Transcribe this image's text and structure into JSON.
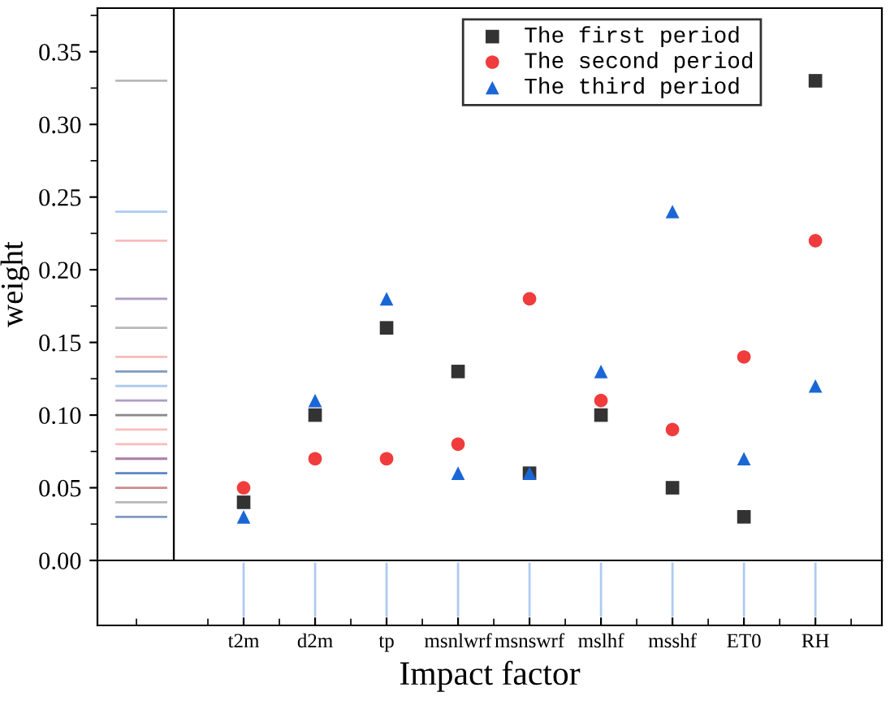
{
  "chart_data": {
    "type": "scatter",
    "xlabel": "Impact factor",
    "ylabel": "weight",
    "categories": [
      "t2m",
      "d2m",
      "tp",
      "msnlwrf",
      "msnswrf",
      "mslhf",
      "msshf",
      "ET0",
      "RH"
    ],
    "series": [
      {
        "name": "The first period",
        "color": "#333333",
        "marker": "square",
        "values": [
          0.04,
          0.1,
          0.16,
          0.13,
          0.06,
          0.1,
          0.05,
          0.03,
          0.33
        ]
      },
      {
        "name": "The second period",
        "color": "#f03c3c",
        "marker": "circle",
        "values": [
          0.05,
          0.07,
          0.07,
          0.08,
          0.18,
          0.11,
          0.09,
          0.14,
          0.22
        ]
      },
      {
        "name": "The third period",
        "color": "#1b66d6",
        "marker": "triangle",
        "values": [
          0.03,
          0.11,
          0.18,
          0.06,
          0.06,
          0.13,
          0.24,
          0.07,
          0.12
        ]
      }
    ],
    "ylim": [
      0,
      0.38
    ],
    "yticks": [
      {
        "value": 0,
        "label": "0.00"
      },
      {
        "value": 0.05,
        "label": "0.05"
      },
      {
        "value": 0.1,
        "label": "0.10"
      },
      {
        "value": 0.15,
        "label": "0.15"
      },
      {
        "value": 0.2,
        "label": "0.20"
      },
      {
        "value": 0.25,
        "label": "0.25"
      },
      {
        "value": 0.3,
        "label": "0.30"
      },
      {
        "value": 0.35,
        "label": "0.35"
      }
    ],
    "grid": false,
    "legend": "top right"
  }
}
